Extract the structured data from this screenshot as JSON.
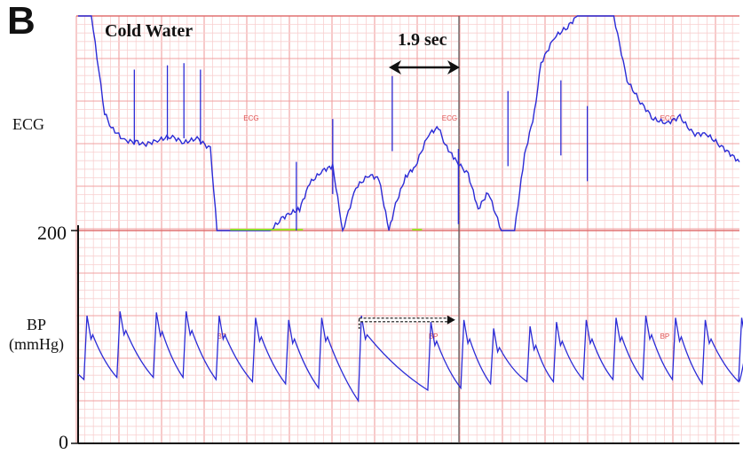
{
  "panel_letter": "B",
  "condition_label": "Cold Water",
  "interval_label": "1.9 sec",
  "chart_data": [
    {
      "type": "line",
      "name": "ecg-panel",
      "ylabel": "ECG",
      "trace_tag": "ECG",
      "tag_positions": [
        0.25,
        0.55,
        0.88
      ],
      "grid": true,
      "trace_color": "#2b2bd6",
      "baseline_color": "#7fff00",
      "x": [
        0,
        0.02,
        0.04,
        0.05,
        0.07,
        0.09,
        0.1,
        0.12,
        0.14,
        0.16,
        0.18,
        0.2,
        0.21,
        0.23,
        0.245,
        0.26,
        0.275,
        0.29,
        0.31,
        0.32,
        0.335,
        0.35,
        0.37,
        0.385,
        0.4,
        0.42,
        0.44,
        0.455,
        0.47,
        0.48,
        0.495,
        0.51,
        0.53,
        0.545,
        0.555,
        0.57,
        0.59,
        0.605,
        0.62,
        0.64,
        0.66,
        0.675,
        0.69,
        0.7,
        0.72,
        0.74,
        0.755,
        0.77,
        0.79,
        0.81,
        0.83,
        0.85,
        0.87,
        0.89,
        0.91,
        0.93,
        0.95,
        0.97,
        1.0
      ],
      "y": [
        1.0,
        1.0,
        0.55,
        0.48,
        0.42,
        0.41,
        0.4,
        0.42,
        0.44,
        0.41,
        0.43,
        0.38,
        0.0,
        0.0,
        0.0,
        0.0,
        0.0,
        0.0,
        0.06,
        0.08,
        0.1,
        0.22,
        0.28,
        0.3,
        0.0,
        0.2,
        0.26,
        0.24,
        0.0,
        0.12,
        0.25,
        0.3,
        0.45,
        0.48,
        0.4,
        0.33,
        0.26,
        0.1,
        0.18,
        0.0,
        0.0,
        0.35,
        0.55,
        0.78,
        0.9,
        0.95,
        1.0,
        1.0,
        1.0,
        1.0,
        0.7,
        0.6,
        0.52,
        0.5,
        0.53,
        0.45,
        0.45,
        0.4,
        0.32
      ],
      "spikes": [
        {
          "x": 0.085,
          "y": 0.75
        },
        {
          "x": 0.135,
          "y": 0.77
        },
        {
          "x": 0.16,
          "y": 0.78
        },
        {
          "x": 0.185,
          "y": 0.75
        },
        {
          "x": 0.33,
          "y": 0.32
        },
        {
          "x": 0.385,
          "y": 0.52
        },
        {
          "x": 0.475,
          "y": 0.72
        },
        {
          "x": 0.575,
          "y": 0.38
        },
        {
          "x": 0.65,
          "y": 0.65
        },
        {
          "x": 0.73,
          "y": 0.7
        },
        {
          "x": 0.77,
          "y": 0.58
        }
      ]
    },
    {
      "type": "line",
      "name": "bp-panel",
      "ylabel": "BP (mmHg)",
      "ylim": [
        0,
        200
      ],
      "y_ticks": [
        "200",
        "0"
      ],
      "trace_tag": "BP",
      "tag_positions": [
        0.21,
        0.53,
        0.88
      ],
      "grid": true,
      "trace_color": "#2b2bd6",
      "beats": [
        {
          "t": 0.01,
          "sys": 120,
          "dia": 60
        },
        {
          "t": 0.06,
          "sys": 124,
          "dia": 62
        },
        {
          "t": 0.115,
          "sys": 123,
          "dia": 62
        },
        {
          "t": 0.16,
          "sys": 124,
          "dia": 62
        },
        {
          "t": 0.21,
          "sys": 120,
          "dia": 60
        },
        {
          "t": 0.265,
          "sys": 118,
          "dia": 58
        },
        {
          "t": 0.315,
          "sys": 116,
          "dia": 56
        },
        {
          "t": 0.365,
          "sys": 118,
          "dia": 52
        },
        {
          "t": 0.425,
          "sys": 120,
          "dia": 40
        },
        {
          "t": 0.53,
          "sys": 114,
          "dia": 50
        },
        {
          "t": 0.58,
          "sys": 116,
          "dia": 52
        },
        {
          "t": 0.625,
          "sys": 108,
          "dia": 56
        },
        {
          "t": 0.68,
          "sys": 110,
          "dia": 58
        },
        {
          "t": 0.72,
          "sys": 114,
          "dia": 58
        },
        {
          "t": 0.765,
          "sys": 116,
          "dia": 60
        },
        {
          "t": 0.81,
          "sys": 118,
          "dia": 60
        },
        {
          "t": 0.855,
          "sys": 120,
          "dia": 60
        },
        {
          "t": 0.9,
          "sys": 118,
          "dia": 60
        },
        {
          "t": 0.945,
          "sys": 116,
          "dia": 56
        },
        {
          "t": 1.0,
          "sys": 118,
          "dia": 58
        }
      ],
      "annotation": {
        "from": 0.425,
        "to": 0.53,
        "value": 116
      }
    }
  ]
}
